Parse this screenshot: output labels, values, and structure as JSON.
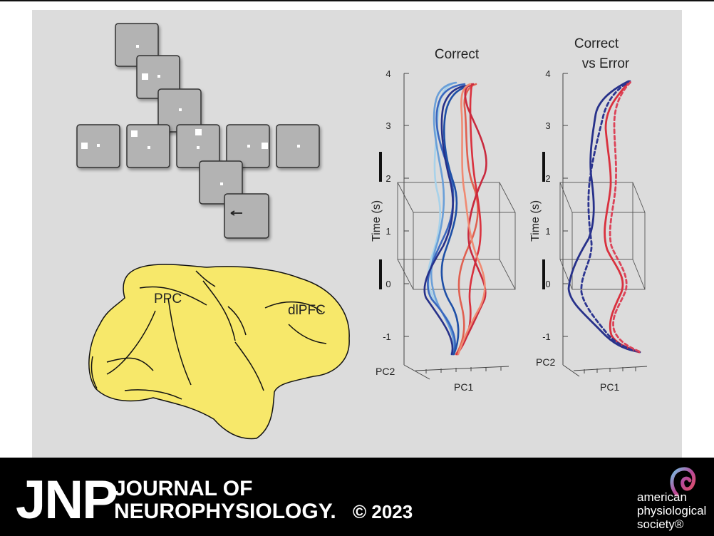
{
  "figure": {
    "brain_labels": {
      "ppc": "PPC",
      "dlpfc": "dlPFC"
    },
    "plot_correct": {
      "title_lines": [
        "Correct"
      ],
      "ylabel": "Time (s)",
      "yticks": [
        "4",
        "3",
        "2",
        "1",
        "0",
        "-1"
      ],
      "xlabel": "PC1",
      "zlabel": "PC2"
    },
    "plot_error": {
      "title_lines": [
        "Correct",
        "vs Error"
      ],
      "ylabel": "Time (s)",
      "yticks": [
        "4",
        "3",
        "2",
        "1",
        "0",
        "-1"
      ],
      "xlabel": "PC1",
      "zlabel": "PC2"
    },
    "colors": {
      "panel_bg": "#dcdcdc",
      "brain_fill": "#f7e86a",
      "screen_fill": "#b3b3b3",
      "correct_blue": "#27318a",
      "correct_red": "#d9313e"
    }
  },
  "footer": {
    "logo": "JNP",
    "journal_line1": "JOURNAL OF",
    "journal_line2": "NEUROPHYSIOLOGY.",
    "copyright": "© 2023",
    "society_line1": "american",
    "society_line2": "physiological",
    "society_line3": "society®",
    "logo_icon": "aps-loop-icon"
  }
}
